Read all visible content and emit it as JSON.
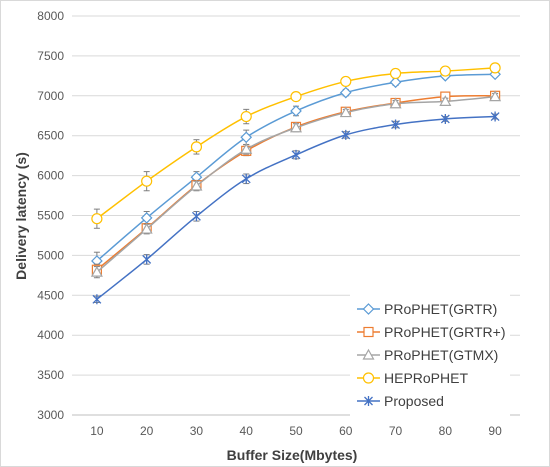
{
  "chart_data": {
    "type": "line",
    "xlabel": "Buffer Size(Mbytes)",
    "ylabel": "Delivery latency (s)",
    "x": [
      10,
      20,
      30,
      40,
      50,
      60,
      70,
      80,
      90
    ],
    "xlim": [
      5,
      95
    ],
    "ylim": [
      3000,
      8000
    ],
    "yticks": [
      3000,
      3500,
      4000,
      4500,
      5000,
      5500,
      6000,
      6500,
      7000,
      7500,
      8000
    ],
    "grid": "horizontal",
    "legend_position": "bottom-right",
    "series": [
      {
        "name": "PRoPHET(GRTR)",
        "color": "#5b9bd5",
        "marker": "diamond",
        "values": [
          4930,
          5470,
          5980,
          6480,
          6810,
          7040,
          7170,
          7250,
          7270
        ],
        "error": [
          110,
          80,
          70,
          90,
          60,
          40,
          40,
          30,
          30
        ]
      },
      {
        "name": "PRoPHET(GRTR+)",
        "color": "#ed7d31",
        "marker": "square",
        "values": [
          4820,
          5340,
          5880,
          6310,
          6610,
          6800,
          6910,
          6990,
          7000
        ],
        "error": [
          70,
          60,
          60,
          60,
          50,
          40,
          40,
          40,
          40
        ]
      },
      {
        "name": "PRoPHET(GTMX)",
        "color": "#a5a5a5",
        "marker": "triangle",
        "values": [
          4790,
          5330,
          5870,
          6330,
          6600,
          6790,
          6900,
          6930,
          6990
        ],
        "error": [
          70,
          60,
          60,
          60,
          50,
          40,
          40,
          40,
          40
        ]
      },
      {
        "name": "HEPRoPHET",
        "color": "#ffc000",
        "marker": "circle",
        "values": [
          5460,
          5930,
          6360,
          6740,
          6990,
          7180,
          7280,
          7310,
          7350
        ],
        "error": [
          120,
          120,
          90,
          90,
          50,
          40,
          40,
          30,
          30
        ]
      },
      {
        "name": "Proposed",
        "color": "#4472c4",
        "marker": "star",
        "values": [
          4450,
          4950,
          5490,
          5960,
          6260,
          6510,
          6640,
          6710,
          6740
        ],
        "error": [
          40,
          60,
          60,
          60,
          50,
          40,
          40,
          30,
          30
        ]
      }
    ]
  }
}
